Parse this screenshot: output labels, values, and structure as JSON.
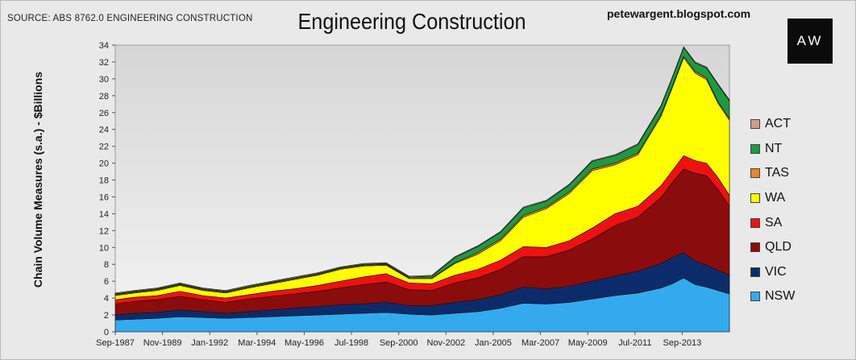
{
  "header": {
    "source": "SOURCE: ABS 8762.0 ENGINEERING CONSTRUCTION",
    "title": "Engineering Construction",
    "blog": "petewargent.blogspot.com",
    "logo": "AW"
  },
  "chart_data": {
    "type": "area",
    "stacked": true,
    "title": "Engineering Construction",
    "ylabel": "Chain Volume Measures (s.a.) - $Billions",
    "xlabel": "",
    "ylim": [
      0,
      34
    ],
    "yticks": [
      0,
      2,
      4,
      6,
      8,
      10,
      12,
      14,
      16,
      18,
      20,
      22,
      24,
      26,
      28,
      30,
      32,
      34
    ],
    "xtick_labels": [
      "Sep-1987",
      "Nov-1989",
      "Jan-1992",
      "Mar-1994",
      "May-1996",
      "Jul-1998",
      "Sep-2000",
      "Nov-2002",
      "Jan-2005",
      "Mar-2007",
      "May-2009",
      "Jul-2011",
      "Sep-2013"
    ],
    "x_start": 1987.67,
    "x_end": 2014.5,
    "grid": false,
    "legend_position": "right",
    "x": [
      1987.67,
      1988.5,
      1989.5,
      1990.5,
      1991.5,
      1992.5,
      1993.5,
      1994.5,
      1995.5,
      1996.5,
      1997.5,
      1998.5,
      1999.5,
      2000.5,
      2001.5,
      2002.5,
      2003.5,
      2004.5,
      2005.5,
      2006.5,
      2007.5,
      2008.5,
      2009.5,
      2010.5,
      2011.5,
      2012.0,
      2012.5,
      2013.0,
      2013.5,
      2014.0,
      2014.5
    ],
    "series": [
      {
        "name": "NSW",
        "color": "#33aaee",
        "values": [
          1.4,
          1.5,
          1.6,
          1.8,
          1.7,
          1.6,
          1.7,
          1.8,
          1.9,
          2.0,
          2.1,
          2.2,
          2.3,
          2.1,
          2.0,
          2.2,
          2.4,
          2.8,
          3.4,
          3.3,
          3.5,
          3.9,
          4.3,
          4.6,
          5.2,
          5.7,
          6.4,
          5.6,
          5.3,
          4.9,
          4.5
        ]
      },
      {
        "name": "VIC",
        "color": "#0c2b6b",
        "values": [
          0.6,
          0.7,
          0.7,
          0.8,
          0.7,
          0.6,
          0.7,
          0.8,
          0.9,
          1.0,
          1.1,
          1.1,
          1.2,
          1.0,
          1.1,
          1.3,
          1.4,
          1.6,
          1.9,
          1.8,
          1.9,
          2.1,
          2.3,
          2.6,
          2.9,
          3.1,
          3.0,
          2.8,
          2.6,
          2.4,
          2.2
        ]
      },
      {
        "name": "QLD",
        "color": "#8b0c0c",
        "values": [
          1.3,
          1.4,
          1.5,
          1.6,
          1.4,
          1.3,
          1.5,
          1.6,
          1.7,
          1.8,
          2.0,
          2.3,
          2.4,
          1.9,
          1.8,
          2.3,
          2.6,
          3.0,
          3.6,
          3.8,
          4.3,
          5.0,
          6.0,
          6.4,
          7.8,
          8.9,
          9.9,
          10.4,
          10.6,
          9.6,
          8.2
        ]
      },
      {
        "name": "SA",
        "color": "#ee1111",
        "values": [
          0.5,
          0.5,
          0.5,
          0.6,
          0.5,
          0.5,
          0.5,
          0.6,
          0.6,
          0.7,
          0.8,
          0.9,
          1.0,
          0.8,
          0.8,
          0.9,
          1.0,
          1.1,
          1.2,
          1.1,
          1.1,
          1.3,
          1.4,
          1.3,
          1.4,
          1.4,
          1.6,
          1.5,
          1.5,
          1.4,
          1.3
        ]
      },
      {
        "name": "WA",
        "color": "#ffff00",
        "values": [
          0.5,
          0.5,
          0.6,
          0.7,
          0.6,
          0.6,
          0.8,
          0.9,
          1.1,
          1.2,
          1.4,
          1.3,
          1.0,
          0.5,
          0.6,
          1.4,
          1.8,
          2.3,
          3.5,
          4.6,
          5.6,
          6.8,
          5.8,
          6.1,
          8.2,
          9.8,
          11.6,
          10.4,
          9.9,
          8.8,
          8.9
        ]
      },
      {
        "name": "TAS",
        "color": "#e6862a",
        "values": [
          0.1,
          0.1,
          0.1,
          0.1,
          0.1,
          0.1,
          0.1,
          0.1,
          0.1,
          0.1,
          0.1,
          0.1,
          0.1,
          0.1,
          0.1,
          0.1,
          0.2,
          0.2,
          0.2,
          0.2,
          0.2,
          0.2,
          0.2,
          0.2,
          0.2,
          0.2,
          0.2,
          0.2,
          0.2,
          0.2,
          0.2
        ]
      },
      {
        "name": "NT",
        "color": "#1e9a42",
        "values": [
          0.1,
          0.1,
          0.1,
          0.1,
          0.1,
          0.1,
          0.1,
          0.1,
          0.1,
          0.1,
          0.1,
          0.1,
          0.1,
          0.1,
          0.2,
          0.6,
          0.7,
          0.8,
          0.9,
          0.7,
          0.8,
          0.9,
          0.9,
          1.0,
          1.0,
          1.0,
          1.0,
          1.0,
          1.2,
          2.0,
          2.1
        ]
      },
      {
        "name": "ACT",
        "color": "#d29a90",
        "values": [
          0.1,
          0.1,
          0.1,
          0.1,
          0.1,
          0.1,
          0.1,
          0.1,
          0.1,
          0.1,
          0.1,
          0.1,
          0.1,
          0.1,
          0.1,
          0.1,
          0.1,
          0.1,
          0.1,
          0.1,
          0.1,
          0.1,
          0.1,
          0.1,
          0.1,
          0.1,
          0.1,
          0.1,
          0.1,
          0.1,
          0.1
        ]
      }
    ]
  }
}
